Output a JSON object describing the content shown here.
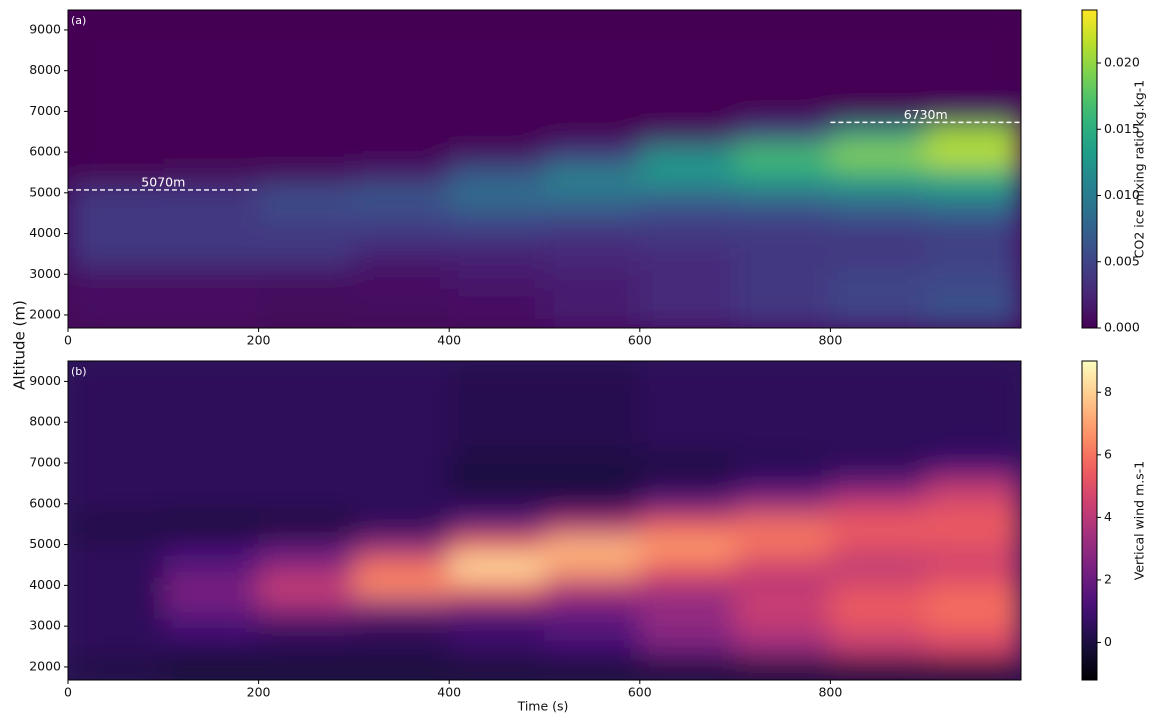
{
  "xlabel": "Time (s)",
  "ylabel": "Altitude (m)",
  "chart_data": [
    {
      "type": "heatmap",
      "panel_label": "(a)",
      "colormap": "viridis",
      "x_edges": [
        0,
        100,
        200,
        300,
        400,
        500,
        600,
        700,
        800,
        900,
        1000
      ],
      "y_edges": [
        1680,
        2200,
        2700,
        3200,
        3700,
        4200,
        4700,
        5200,
        5700,
        6200,
        6700,
        7200,
        9500
      ],
      "z": [
        [
          0.001,
          0.001,
          0.0005,
          0.0005,
          0.001,
          0.002,
          0.003,
          0.004,
          0.005,
          0.006
        ],
        [
          0.001,
          0.001,
          0.0005,
          0.001,
          0.001,
          0.002,
          0.003,
          0.004,
          0.005,
          0.006
        ],
        [
          0.001,
          0.001,
          0.001,
          0.001,
          0.002,
          0.002,
          0.003,
          0.004,
          0.005,
          0.005
        ],
        [
          0.004,
          0.004,
          0.004,
          0.002,
          0.002,
          0.003,
          0.003,
          0.004,
          0.004,
          0.005
        ],
        [
          0.004,
          0.004,
          0.004,
          0.004,
          0.004,
          0.003,
          0.004,
          0.004,
          0.004,
          0.004
        ],
        [
          0.004,
          0.004,
          0.005,
          0.005,
          0.006,
          0.006,
          0.005,
          0.005,
          0.006,
          0.007
        ],
        [
          0.004,
          0.004,
          0.006,
          0.007,
          0.009,
          0.009,
          0.008,
          0.009,
          0.01,
          0.011
        ],
        [
          0,
          0.0005,
          0.001,
          0.002,
          0.007,
          0.011,
          0.013,
          0.014,
          0.015,
          0.016
        ],
        [
          0,
          0,
          0,
          0,
          0.001,
          0.004,
          0.012,
          0.017,
          0.02,
          0.022
        ],
        [
          0,
          0,
          0,
          0,
          0,
          0,
          0.001,
          0.005,
          0.013,
          0.02
        ],
        [
          0,
          0,
          0,
          0,
          0,
          0,
          0,
          0,
          0,
          0.001
        ],
        [
          0,
          0,
          0,
          0,
          0,
          0,
          0,
          0,
          0,
          0
        ]
      ],
      "xlim": [
        0,
        1000
      ],
      "ylim": [
        1680,
        9490
      ],
      "xticks": [
        0,
        200,
        400,
        600,
        800
      ],
      "yticks": [
        2000,
        3000,
        4000,
        5000,
        6000,
        7000,
        8000,
        9000
      ],
      "clim": [
        0,
        0.024
      ],
      "cticks": [
        {
          "value": 0,
          "label": "0.000"
        },
        {
          "value": 0.005,
          "label": "0.005"
        },
        {
          "value": 0.01,
          "label": "0.010"
        },
        {
          "value": 0.015,
          "label": "0.015"
        },
        {
          "value": 0.02,
          "label": "0.020"
        }
      ],
      "clabel": "CO2 ice mixing ratio kg.kg-1",
      "annotations": [
        {
          "text": "5070m",
          "y": 5070,
          "x": [
            0,
            200
          ]
        },
        {
          "text": "6730m",
          "y": 6730,
          "x": [
            800,
            1000
          ]
        }
      ]
    },
    {
      "type": "heatmap",
      "panel_label": "(b)",
      "colormap": "magma",
      "x_edges": [
        0,
        100,
        200,
        300,
        400,
        500,
        600,
        700,
        800,
        900,
        1000
      ],
      "y_edges": [
        1680,
        2200,
        2700,
        3200,
        3700,
        4200,
        4700,
        5200,
        5700,
        6200,
        6700,
        7200,
        9500
      ],
      "z": [
        [
          0,
          -0.5,
          -0.5,
          -0.5,
          -0.5,
          -0.5,
          -0.5,
          -0.5,
          -0.5,
          -0.5
        ],
        [
          0.5,
          0.5,
          0.5,
          0.5,
          0.8,
          1,
          2,
          3,
          4,
          4.5
        ],
        [
          0.5,
          1,
          0.5,
          0.3,
          0.8,
          1.5,
          3,
          4,
          5,
          5.5
        ],
        [
          0.5,
          2,
          3,
          2.5,
          2,
          2,
          3,
          4.5,
          5.5,
          6
        ],
        [
          0.5,
          2.5,
          4.5,
          6.5,
          6,
          4,
          3.5,
          4,
          5,
          5.5
        ],
        [
          0.5,
          1.5,
          3,
          6,
          8.5,
          7,
          5.5,
          4.5,
          4,
          4.5
        ],
        [
          0.5,
          1,
          1.5,
          3,
          6,
          7.5,
          7,
          6,
          5,
          5
        ],
        [
          0,
          -0.5,
          -0.3,
          0.5,
          2,
          4,
          5.5,
          6,
          5.5,
          5.5
        ],
        [
          0.5,
          0.5,
          0.5,
          0.5,
          0.5,
          0.5,
          2,
          3.5,
          4.5,
          5
        ],
        [
          0.5,
          0.5,
          0.5,
          0.5,
          0,
          0,
          0.5,
          1,
          2,
          4
        ],
        [
          0.5,
          0.5,
          0.5,
          0.5,
          0,
          0,
          0,
          0.3,
          0.5,
          1
        ],
        [
          0.5,
          0.5,
          0.5,
          0.5,
          0.3,
          0.3,
          0.5,
          0.5,
          0.5,
          0.5
        ]
      ],
      "xlim": [
        0,
        1000
      ],
      "ylim": [
        1680,
        9500
      ],
      "xticks": [
        0,
        200,
        400,
        600,
        800
      ],
      "yticks": [
        2000,
        3000,
        4000,
        5000,
        6000,
        7000,
        8000,
        9000
      ],
      "clim": [
        -1.2,
        9
      ],
      "cticks": [
        0,
        2,
        4,
        6,
        8
      ],
      "clabel": "Vertical wind m.s-1"
    }
  ]
}
